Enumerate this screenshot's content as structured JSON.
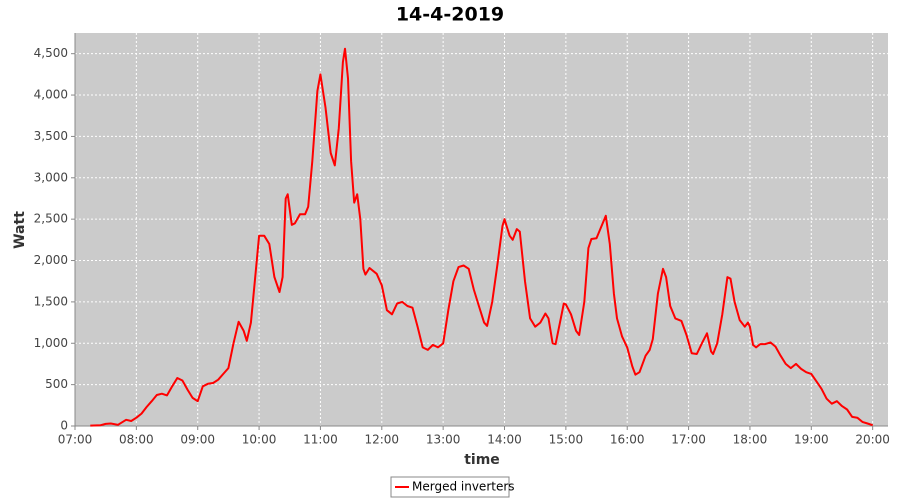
{
  "chart_data": {
    "type": "line",
    "title": "14-4-2019",
    "x_label": "time",
    "y_label": "Watt",
    "xlim": [
      "07:00",
      "20:15"
    ],
    "xticks": [
      "07:00",
      "08:00",
      "09:00",
      "10:00",
      "11:00",
      "12:00",
      "13:00",
      "14:00",
      "15:00",
      "16:00",
      "17:00",
      "18:00",
      "19:00",
      "20:00"
    ],
    "ylim": [
      0,
      4750
    ],
    "yticks": [
      0,
      500,
      {
        "value": 1000,
        "label": "1,000"
      },
      {
        "value": 1500,
        "label": "1,500"
      },
      {
        "value": 2000,
        "label": "2,000"
      },
      {
        "value": 2500,
        "label": "2,500"
      },
      {
        "value": 3000,
        "label": "3,000"
      },
      {
        "value": 3500,
        "label": "3,500"
      },
      {
        "value": 4000,
        "label": "4,000"
      },
      {
        "value": 4500,
        "label": "4,500"
      }
    ],
    "grid": true,
    "legend": "bottom",
    "x": [
      "07:15",
      "07:25",
      "07:30",
      "07:35",
      "07:42",
      "07:50",
      "07:55",
      "08:00",
      "08:05",
      "08:10",
      "08:15",
      "08:20",
      "08:25",
      "08:30",
      "08:35",
      "08:40",
      "08:45",
      "08:50",
      "08:55",
      "09:00",
      "09:05",
      "09:10",
      "09:15",
      "09:20",
      "09:25",
      "09:30",
      "09:35",
      "09:40",
      "09:45",
      "09:48",
      "09:52",
      "09:57",
      "10:00",
      "10:05",
      "10:10",
      "10:15",
      "10:20",
      "10:23",
      "10:26",
      "10:28",
      "10:32",
      "10:35",
      "10:40",
      "10:45",
      "10:48",
      "10:52",
      "10:57",
      "11:00",
      "11:05",
      "11:10",
      "11:14",
      "11:18",
      "11:22",
      "11:24",
      "11:27",
      "11:30",
      "11:33",
      "11:36",
      "11:39",
      "11:42",
      "11:44",
      "11:48",
      "11:55",
      "12:00",
      "12:05",
      "12:10",
      "12:15",
      "12:20",
      "12:25",
      "12:30",
      "12:35",
      "12:40",
      "12:45",
      "12:50",
      "12:55",
      "13:00",
      "13:05",
      "13:10",
      "13:15",
      "13:20",
      "13:25",
      "13:30",
      "13:35",
      "13:40",
      "13:43",
      "13:48",
      "13:53",
      "13:58",
      "14:00",
      "14:05",
      "14:08",
      "14:12",
      "14:15",
      "14:20",
      "14:25",
      "14:30",
      "14:35",
      "14:40",
      "14:43",
      "14:47",
      "14:50",
      "14:55",
      "14:58",
      "15:00",
      "15:05",
      "15:10",
      "15:13",
      "15:18",
      "15:22",
      "15:25",
      "15:30",
      "15:39",
      "15:43",
      "15:47",
      "15:50",
      "15:55",
      "16:00",
      "16:05",
      "16:08",
      "16:12",
      "16:18",
      "16:22",
      "16:25",
      "16:30",
      "16:35",
      "16:38",
      "16:42",
      "16:47",
      "16:53",
      "16:58",
      "17:03",
      "17:08",
      "17:13",
      "17:18",
      "17:22",
      "17:24",
      "17:28",
      "17:33",
      "17:38",
      "17:41",
      "17:45",
      "17:50",
      "17:55",
      "17:58",
      "18:00",
      "18:03",
      "18:06",
      "18:10",
      "18:15",
      "18:20",
      "18:25",
      "18:30",
      "18:35",
      "18:40",
      "18:45",
      "18:50",
      "18:55",
      "19:00",
      "19:05",
      "19:10",
      "19:15",
      "19:20",
      "19:25",
      "19:30",
      "19:35",
      "19:40",
      "19:45",
      "19:50",
      "19:55",
      "20:00"
    ],
    "series": [
      {
        "name": "Merged inverters",
        "color": "#ff0000",
        "values": [
          5,
          10,
          25,
          30,
          15,
          75,
          60,
          100,
          150,
          230,
          300,
          375,
          390,
          370,
          480,
          580,
          550,
          440,
          340,
          300,
          480,
          510,
          520,
          560,
          630,
          700,
          1000,
          1260,
          1150,
          1030,
          1250,
          1900,
          2300,
          2300,
          2200,
          1800,
          1620,
          1800,
          2750,
          2800,
          2430,
          2450,
          2560,
          2560,
          2650,
          3200,
          4050,
          4250,
          3850,
          3300,
          3150,
          3600,
          4400,
          4560,
          4200,
          3200,
          2700,
          2800,
          2500,
          1900,
          1830,
          1910,
          1840,
          1700,
          1400,
          1350,
          1480,
          1500,
          1450,
          1430,
          1200,
          950,
          920,
          980,
          950,
          1000,
          1400,
          1750,
          1920,
          1940,
          1900,
          1650,
          1450,
          1250,
          1210,
          1500,
          1950,
          2420,
          2500,
          2300,
          2250,
          2380,
          2350,
          1750,
          1300,
          1200,
          1250,
          1360,
          1300,
          1000,
          990,
          1300,
          1480,
          1470,
          1350,
          1150,
          1100,
          1500,
          2150,
          2260,
          2270,
          2540,
          2200,
          1600,
          1300,
          1080,
          950,
          720,
          620,
          650,
          850,
          920,
          1050,
          1600,
          1900,
          1800,
          1450,
          1300,
          1270,
          1100,
          880,
          870,
          1000,
          1120,
          900,
          870,
          1000,
          1350,
          1800,
          1780,
          1500,
          1280,
          1200,
          1250,
          1200,
          980,
          950,
          990,
          990,
          1010,
          960,
          850,
          750,
          700,
          750,
          690,
          650,
          630,
          540,
          450,
          330,
          270,
          300,
          240,
          200,
          110,
          100,
          50,
          30,
          10
        ]
      }
    ]
  }
}
